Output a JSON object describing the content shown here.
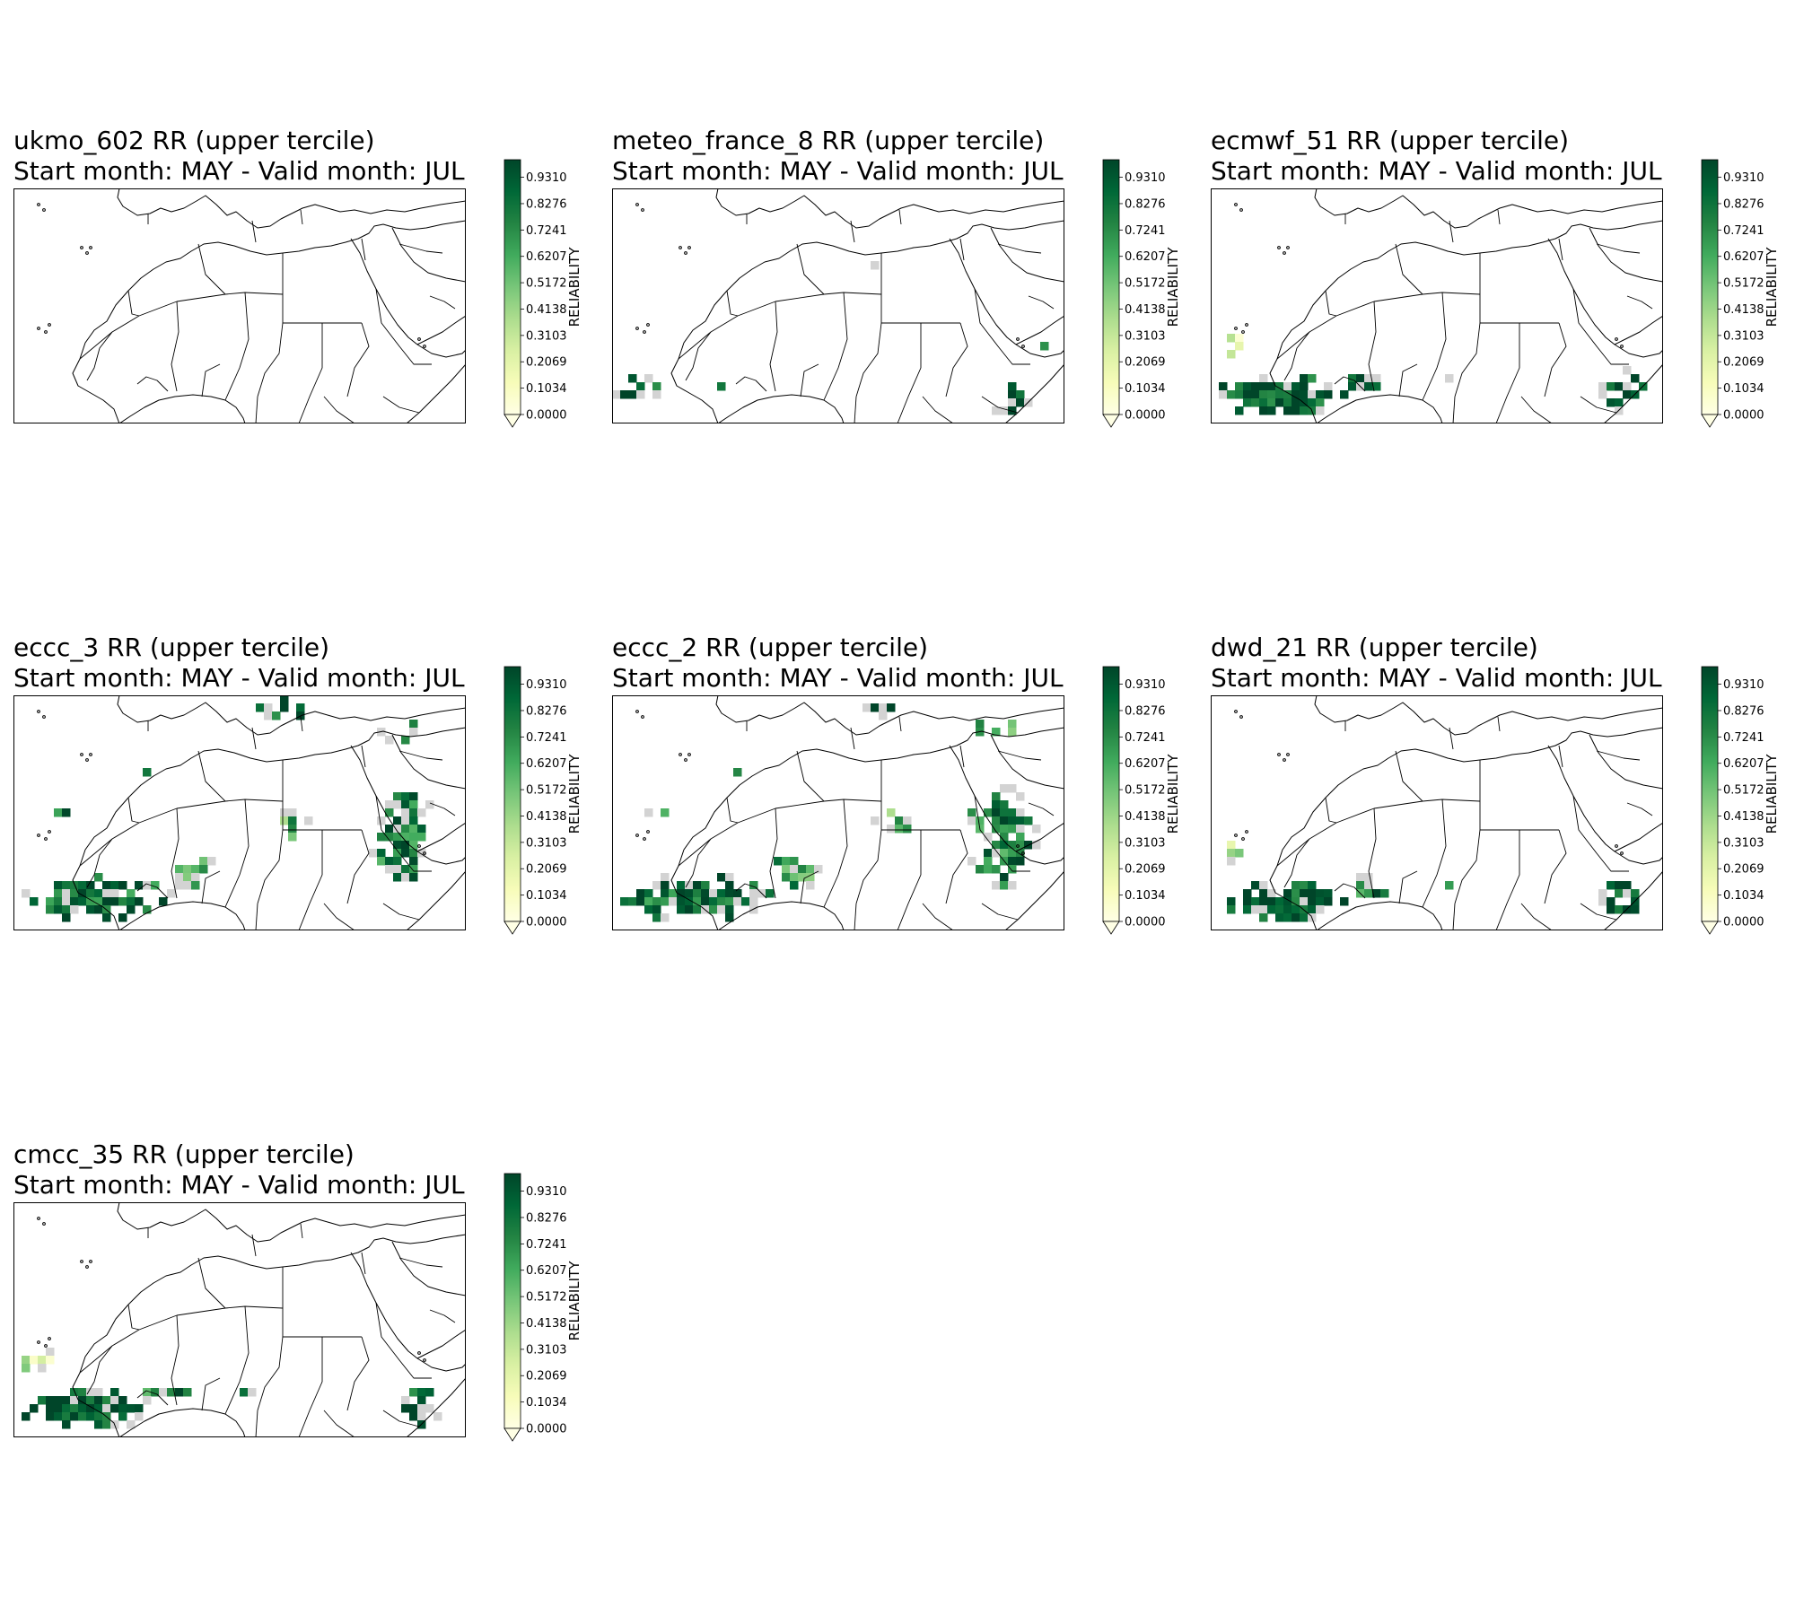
{
  "colorbar": {
    "label": "RELIABILITY",
    "ticks": [
      "0.0000",
      "0.1034",
      "0.2069",
      "0.3103",
      "0.4138",
      "0.5172",
      "0.6207",
      "0.7241",
      "0.8276",
      "0.9310"
    ],
    "range": [
      0,
      1
    ],
    "colormap": [
      "#ffffe5",
      "#f7fcb9",
      "#d9f0a3",
      "#addd8e",
      "#78c679",
      "#41ab5d",
      "#238443",
      "#006837",
      "#004529"
    ],
    "extend": "min"
  },
  "nodata_color": "#d3d3d3",
  "panels": [
    {
      "title": "ukmo_602  RR (upper tercile)",
      "subtitle": "Start month: MAY - Valid month: JUL",
      "coverage": "none"
    },
    {
      "title": "meteo_france_8  RR (upper tercile)",
      "subtitle": "Start month: MAY - Valid month: JUL",
      "coverage": "sparse"
    },
    {
      "title": "ecmwf_51  RR (upper tercile)",
      "subtitle": "Start month: MAY - Valid month: JUL",
      "coverage": "southwest-band"
    },
    {
      "title": "eccc_3  RR (upper tercile)",
      "subtitle": "Start month: MAY - Valid month: JUL",
      "coverage": "widespread"
    },
    {
      "title": "eccc_2  RR (upper tercile)",
      "subtitle": "Start month: MAY - Valid month: JUL",
      "coverage": "widespread"
    },
    {
      "title": "dwd_21  RR (upper tercile)",
      "subtitle": "Start month: MAY - Valid month: JUL",
      "coverage": "southwest-band"
    },
    {
      "title": "cmcc_35  RR (upper tercile)",
      "subtitle": "Start month: MAY - Valid month: JUL",
      "coverage": "southwest-band"
    }
  ]
}
